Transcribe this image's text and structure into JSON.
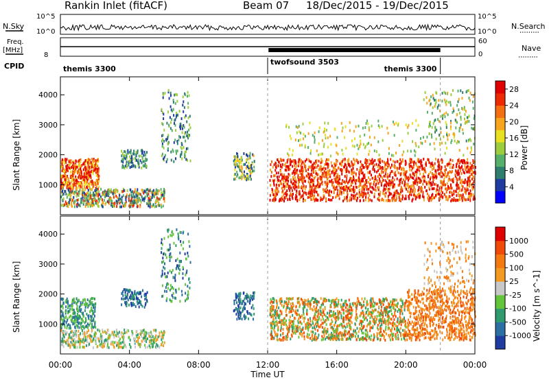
{
  "header": {
    "station": "Rankin Inlet (fitACF)",
    "beam": "Beam 07",
    "date_range": "18/Dec/2015 - 19/Dec/2015"
  },
  "strip_labels": {
    "nsky": "N.Sky",
    "nsearch": "N.Search",
    "freq_top": "Freq.",
    "freq_unit": "[MHz]",
    "nave": "Nave",
    "cpid": "CPID",
    "log_hi": "10^5",
    "log_lo": "10^0",
    "freq_tick_lo": "8",
    "nave_tick_hi": "60",
    "nave_tick_lo": "0"
  },
  "cpid_segments": [
    {
      "label": "themis 3300",
      "start_hour": 0,
      "end_hour": 12
    },
    {
      "label": "twofsound 3503",
      "start_hour": 12,
      "end_hour": 22
    },
    {
      "label": "themis 3300",
      "start_hour": 22,
      "end_hour": 24
    }
  ],
  "colors": {
    "power_scale": [
      "#0000ff",
      "#1f3ca0",
      "#2e7d6e",
      "#57b06a",
      "#9ccd3c",
      "#e8e020",
      "#f7a51e",
      "#f46f10",
      "#ee2a05",
      "#e00000"
    ],
    "velocity_scale": [
      "#1f3ca0",
      "#2c6fa2",
      "#2e9a6e",
      "#64c43c",
      "#c8c8c8",
      "#f39a22",
      "#f47a10",
      "#ef4a08",
      "#e00000"
    ]
  },
  "chart_data": [
    {
      "type": "heatmap",
      "panel": "power",
      "xlabel": "",
      "ylabel": "Slant Range [km]",
      "x_range_hours": [
        0,
        24
      ],
      "ylim": [
        0,
        4600
      ],
      "yticks": [
        1000,
        2000,
        3000,
        4000
      ],
      "colorbar": {
        "label": "Power [dB]",
        "ticks": [
          "4",
          "8",
          "12",
          "16",
          "20",
          "24",
          "28"
        ],
        "range": [
          0,
          30
        ]
      },
      "grid": false
    },
    {
      "type": "heatmap",
      "panel": "velocity",
      "xlabel": "Time UT",
      "ylabel": "Slant Range [km]",
      "x_range_hours": [
        0,
        24
      ],
      "xticks": [
        "00:00",
        "04:00",
        "08:00",
        "12:00",
        "16:00",
        "20:00",
        "00:00"
      ],
      "ylim": [
        0,
        4600
      ],
      "yticks": [
        1000,
        2000,
        3000,
        4000
      ],
      "colorbar": {
        "label": "Velocity [m s^-1]",
        "ticks": [
          "1000",
          "500",
          "100",
          "25",
          "-25",
          "-100",
          "-500",
          "-1000"
        ]
      },
      "grid": false
    }
  ]
}
